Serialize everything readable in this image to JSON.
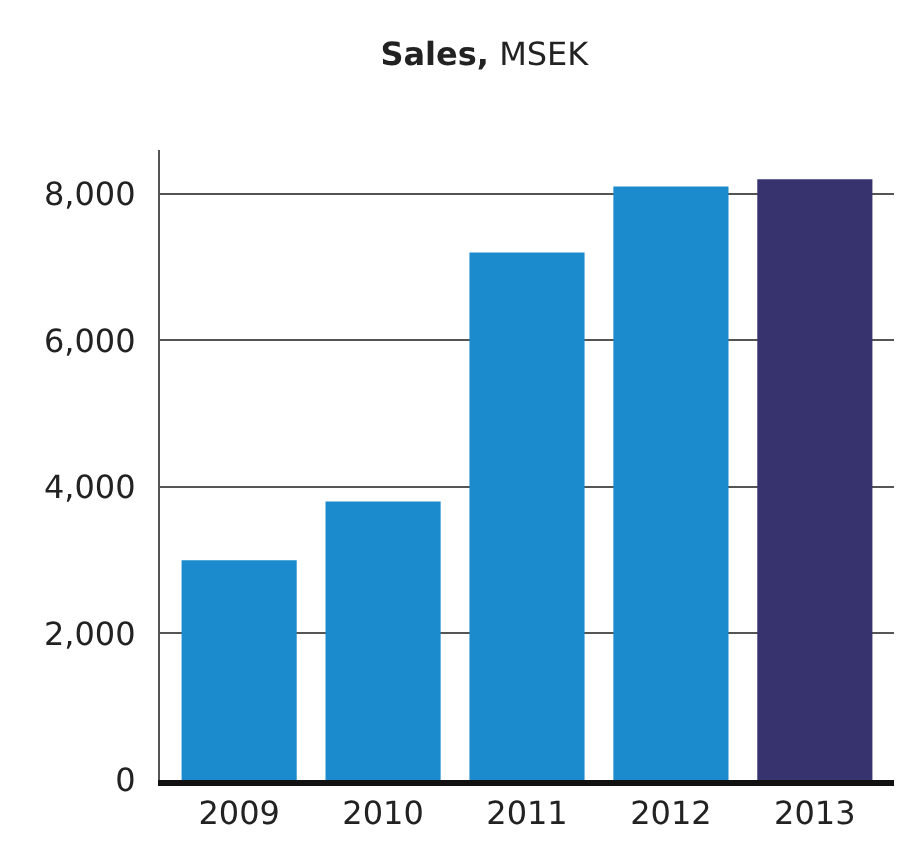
{
  "chart_data": {
    "type": "bar",
    "title": "Sales, MSEK",
    "categories": [
      "2009",
      "2010",
      "2011",
      "2012",
      "2013"
    ],
    "values": [
      3000,
      3800,
      7200,
      8100,
      8200
    ],
    "colors": [
      "#1b8bcd",
      "#1b8bcd",
      "#1b8bcd",
      "#1b8bcd",
      "#36336f"
    ],
    "ylim": [
      0,
      8600
    ],
    "yticks": [
      {
        "value": 0,
        "label": "0"
      },
      {
        "value": 2000,
        "label": "2,000"
      },
      {
        "value": 4000,
        "label": "4,000"
      },
      {
        "value": 6000,
        "label": "6,000"
      },
      {
        "value": 8000,
        "label": "8,000"
      }
    ],
    "grid": "y"
  }
}
